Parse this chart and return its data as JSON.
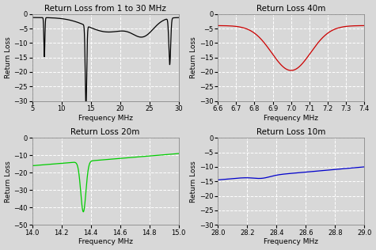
{
  "title_tl": "Return Loss from 1 to 30 MHz",
  "title_tr": "Return Loss 40m",
  "title_bl": "Return Loss 20m",
  "title_br": "Return Loss 10m",
  "ylabel": "Return Loss",
  "xlabel": "Frequency MHz",
  "tl_xlim": [
    5,
    30
  ],
  "tl_ylim": [
    -30,
    0
  ],
  "tl_xticks": [
    5,
    10,
    15,
    20,
    25,
    30
  ],
  "tl_yticks": [
    0,
    -5,
    -10,
    -15,
    -20,
    -25,
    -30
  ],
  "tl_color": "#000000",
  "tr_xlim": [
    6.6,
    7.4
  ],
  "tr_ylim": [
    -30,
    0
  ],
  "tr_xticks": [
    6.6,
    6.7,
    6.8,
    6.9,
    7.0,
    7.1,
    7.2,
    7.3,
    7.4
  ],
  "tr_yticks": [
    0,
    -5,
    -10,
    -15,
    -20,
    -25,
    -30
  ],
  "tr_color": "#cc0000",
  "bl_xlim": [
    14.0,
    15.0
  ],
  "bl_ylim": [
    -50,
    0
  ],
  "bl_xticks": [
    14.0,
    14.2,
    14.4,
    14.6,
    14.8,
    15.0
  ],
  "bl_yticks": [
    0,
    -10,
    -20,
    -30,
    -40,
    -50
  ],
  "bl_color": "#00cc00",
  "br_xlim": [
    28.0,
    29.0
  ],
  "br_ylim": [
    -30,
    0
  ],
  "br_xticks": [
    28.0,
    28.2,
    28.4,
    28.6,
    28.8,
    29.0
  ],
  "br_yticks": [
    0,
    -5,
    -10,
    -15,
    -20,
    -25,
    -30
  ],
  "br_color": "#0000cc",
  "bg_color": "#d8d8d8",
  "grid_color": "#ffffff",
  "title_fontsize": 7.5,
  "label_fontsize": 6.5,
  "tick_fontsize": 6
}
